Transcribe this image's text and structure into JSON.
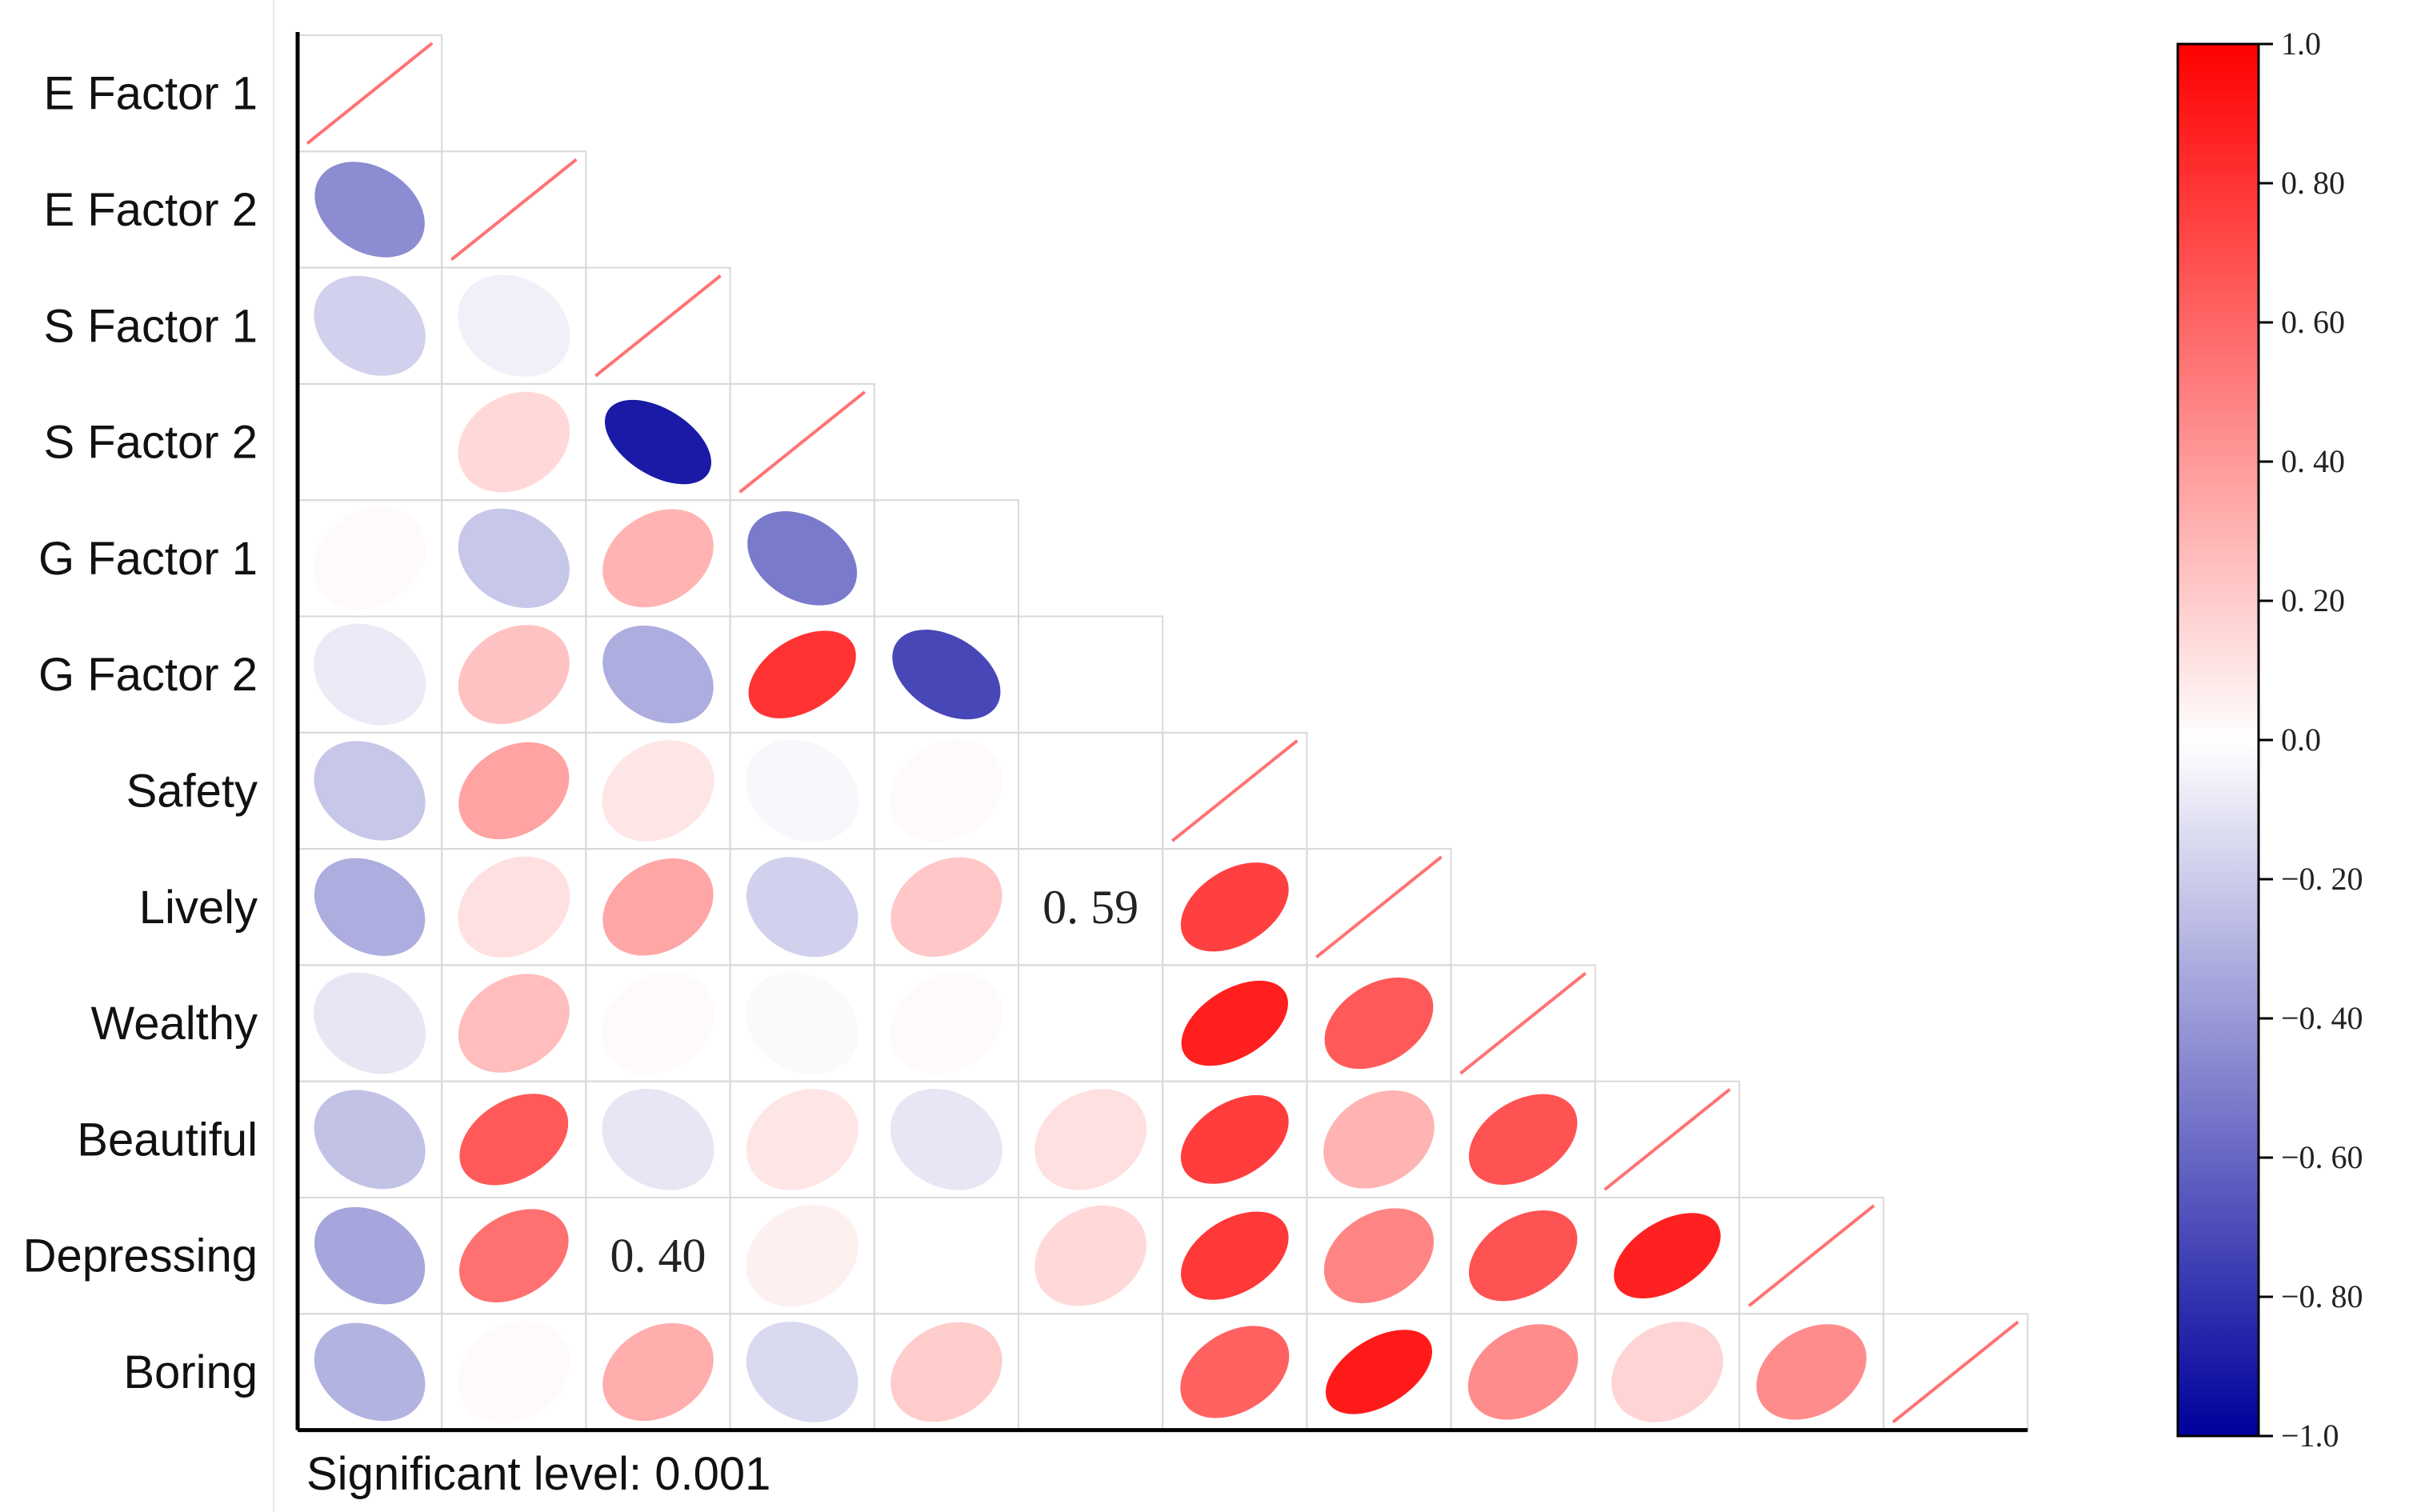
{
  "chart_data": {
    "type": "heatmap",
    "variant": "correlogram-ellipse-lower-triangle",
    "variables": [
      "E Factor 1",
      "E Factor 2",
      "S Factor 1",
      "S Factor 2",
      "G Factor 1",
      "G Factor 2",
      "Safety",
      "Lively",
      "Wealthy",
      "Beautiful",
      "Depressing",
      "Boring"
    ],
    "cells": [
      {
        "row": 1,
        "col": 0,
        "value": -0.45
      },
      {
        "row": 2,
        "col": 0,
        "value": -0.18
      },
      {
        "row": 2,
        "col": 1,
        "value": -0.06
      },
      {
        "row": 3,
        "col": 0,
        "value": 0.0,
        "blank": true
      },
      {
        "row": 3,
        "col": 1,
        "value": 0.15
      },
      {
        "row": 3,
        "col": 2,
        "value": -0.9
      },
      {
        "row": 4,
        "col": 0,
        "value": 0.02
      },
      {
        "row": 4,
        "col": 1,
        "value": -0.22
      },
      {
        "row": 4,
        "col": 2,
        "value": 0.3
      },
      {
        "row": 4,
        "col": 3,
        "value": -0.52
      },
      {
        "row": 5,
        "col": 0,
        "value": -0.08
      },
      {
        "row": 5,
        "col": 1,
        "value": 0.24
      },
      {
        "row": 5,
        "col": 2,
        "value": -0.32
      },
      {
        "row": 5,
        "col": 3,
        "value": 0.8
      },
      {
        "row": 5,
        "col": 4,
        "value": -0.72
      },
      {
        "row": 6,
        "col": 0,
        "value": -0.22
      },
      {
        "row": 6,
        "col": 1,
        "value": 0.36
      },
      {
        "row": 6,
        "col": 2,
        "value": 0.1
      },
      {
        "row": 6,
        "col": 3,
        "value": -0.03
      },
      {
        "row": 6,
        "col": 4,
        "value": 0.02
      },
      {
        "row": 6,
        "col": 5,
        "value": null
      },
      {
        "row": 7,
        "col": 0,
        "value": -0.32
      },
      {
        "row": 7,
        "col": 1,
        "value": 0.12
      },
      {
        "row": 7,
        "col": 2,
        "value": 0.35
      },
      {
        "row": 7,
        "col": 3,
        "value": -0.18
      },
      {
        "row": 7,
        "col": 4,
        "value": 0.22
      },
      {
        "row": 7,
        "col": 5,
        "value": 0.59,
        "label": "0. 59"
      },
      {
        "row": 7,
        "col": 6,
        "value": 0.75
      },
      {
        "row": 8,
        "col": 0,
        "value": -0.1
      },
      {
        "row": 8,
        "col": 1,
        "value": 0.26
      },
      {
        "row": 8,
        "col": 2,
        "value": 0.02
      },
      {
        "row": 8,
        "col": 3,
        "value": -0.02
      },
      {
        "row": 8,
        "col": 4,
        "value": 0.02
      },
      {
        "row": 8,
        "col": 5,
        "value": null
      },
      {
        "row": 8,
        "col": 6,
        "value": 0.88
      },
      {
        "row": 8,
        "col": 7,
        "value": 0.65
      },
      {
        "row": 9,
        "col": 0,
        "value": -0.24
      },
      {
        "row": 9,
        "col": 1,
        "value": 0.65
      },
      {
        "row": 9,
        "col": 2,
        "value": -0.1
      },
      {
        "row": 9,
        "col": 3,
        "value": 0.1
      },
      {
        "row": 9,
        "col": 4,
        "value": -0.1
      },
      {
        "row": 9,
        "col": 5,
        "value": 0.12
      },
      {
        "row": 9,
        "col": 6,
        "value": 0.76
      },
      {
        "row": 9,
        "col": 7,
        "value": 0.3
      },
      {
        "row": 9,
        "col": 8,
        "value": 0.68
      },
      {
        "row": 10,
        "col": 0,
        "value": -0.35
      },
      {
        "row": 10,
        "col": 1,
        "value": 0.56
      },
      {
        "row": 10,
        "col": 2,
        "value": 0.4,
        "label": "0. 40"
      },
      {
        "row": 10,
        "col": 3,
        "value": 0.06
      },
      {
        "row": 10,
        "col": 4,
        "value": null
      },
      {
        "row": 10,
        "col": 5,
        "value": 0.15
      },
      {
        "row": 10,
        "col": 6,
        "value": 0.78
      },
      {
        "row": 10,
        "col": 7,
        "value": 0.48
      },
      {
        "row": 10,
        "col": 8,
        "value": 0.68
      },
      {
        "row": 10,
        "col": 9,
        "value": 0.87
      },
      {
        "row": 11,
        "col": 0,
        "value": -0.3
      },
      {
        "row": 11,
        "col": 1,
        "value": 0.02
      },
      {
        "row": 11,
        "col": 2,
        "value": 0.32
      },
      {
        "row": 11,
        "col": 3,
        "value": -0.15
      },
      {
        "row": 11,
        "col": 4,
        "value": 0.2
      },
      {
        "row": 11,
        "col": 5,
        "value": null
      },
      {
        "row": 11,
        "col": 6,
        "value": 0.62
      },
      {
        "row": 11,
        "col": 7,
        "value": 0.9
      },
      {
        "row": 11,
        "col": 8,
        "value": 0.45
      },
      {
        "row": 11,
        "col": 9,
        "value": 0.17
      },
      {
        "row": 11,
        "col": 10,
        "value": 0.45
      }
    ],
    "diagonal": {
      "value": 1.0,
      "style": "line"
    },
    "diagonal_omitted_cols": [
      4,
      5
    ],
    "colorbar": {
      "min": -1.0,
      "max": 1.0,
      "ticks": [
        1.0,
        0.8,
        0.6,
        0.4,
        0.2,
        0.0,
        -0.2,
        -0.4,
        -0.6,
        -0.8,
        -1.0
      ],
      "tick_labels": [
        "1.0",
        "0. 80",
        "0. 60",
        "0. 40",
        "0. 20",
        "0.0",
        "−0. 20",
        "−0. 40",
        "−0. 60",
        "−0. 80",
        "−1.0"
      ],
      "colors": {
        "negative": "#00009c",
        "zero": "#ffffff",
        "positive": "#ff0000"
      }
    },
    "footnote": "Significant level: 0.001"
  }
}
